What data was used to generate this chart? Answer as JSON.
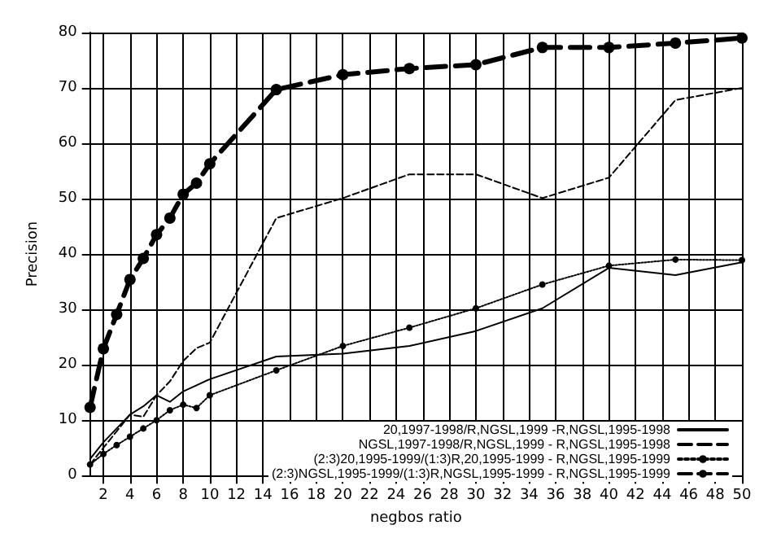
{
  "chart_data": {
    "type": "line",
    "xlabel": "negbos ratio",
    "ylabel": "Precision",
    "x": [
      1,
      2,
      3,
      4,
      5,
      6,
      7,
      8,
      9,
      10,
      15,
      20,
      25,
      30,
      35,
      40,
      45,
      50
    ],
    "series": [
      {
        "name": "20,1997-1998/R,NGSL,1999 -R,NGSL,1995-1998",
        "color": "#000000",
        "line_style": "solid",
        "marker": "none",
        "values": [
          3,
          6,
          8.5,
          11,
          12.5,
          14.5,
          13.3,
          15.2,
          16.3,
          17.4,
          21.5,
          22,
          23.4,
          26.1,
          30.2,
          37.5,
          36.2,
          38.5
        ]
      },
      {
        "name": "NGSL,1997-1998/R,NGSL,1999 - R,NGSL,1995-1998",
        "color": "#000000",
        "line_style": "dashed",
        "marker": "none",
        "values": [
          2,
          5,
          8,
          11,
          10.6,
          14.5,
          17,
          20.7,
          23,
          24,
          46.5,
          50.1,
          54.4,
          54.4,
          50.1,
          53.8,
          67.8,
          70
        ]
      },
      {
        "name": "(2:3)20,1995-1999/(1:3)R,20,1995-1999 - R,NGSL,1995-1999",
        "color": "#000000",
        "line_style": "dotted",
        "marker": "circle",
        "values": [
          2,
          3.9,
          5.5,
          7,
          8.5,
          10,
          11.8,
          12.8,
          12.2,
          14.5,
          19,
          23.4,
          26.7,
          30.2,
          34.5,
          37.9,
          39,
          38.9
        ]
      },
      {
        "name": "(2:3)NGSL,1995-1999/(1:3)R,NGSL,1995-1999 - R,NGSL,1995-1999",
        "color": "#000000",
        "line_style": "dashed",
        "marker": "circle",
        "values": [
          12.3,
          22.9,
          29.1,
          35.4,
          39.2,
          43.5,
          46.5,
          50.8,
          52.8,
          56.3,
          69.7,
          72.4,
          73.5,
          74.2,
          77.3,
          77.3,
          78.1,
          79
        ]
      }
    ],
    "xlim": [
      1,
      50
    ],
    "xticks": [
      2,
      4,
      6,
      8,
      10,
      12,
      14,
      16,
      18,
      20,
      22,
      24,
      26,
      28,
      30,
      32,
      34,
      36,
      38,
      40,
      42,
      44,
      46,
      48,
      50
    ],
    "ylim": [
      0,
      80
    ],
    "yticks": [
      0,
      10,
      20,
      30,
      40,
      50,
      60,
      70,
      80
    ],
    "grid": true,
    "legend": "bottom right"
  }
}
